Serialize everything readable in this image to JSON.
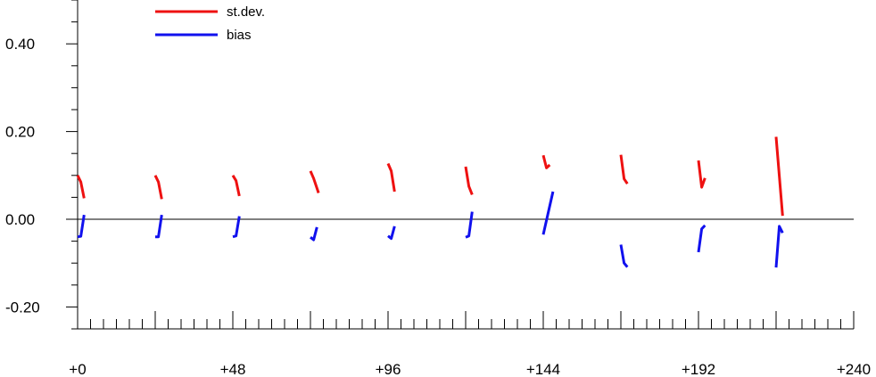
{
  "chart_data": {
    "type": "line",
    "title": "",
    "xlabel": "",
    "ylabel": "",
    "xlim": [
      0,
      240
    ],
    "ylim": [
      -0.25,
      0.5
    ],
    "x_ticks": [
      {
        "value": 0,
        "label": "+0"
      },
      {
        "value": 48,
        "label": "+48"
      },
      {
        "value": 96,
        "label": "+96"
      },
      {
        "value": 144,
        "label": "+144"
      },
      {
        "value": 192,
        "label": "+192"
      },
      {
        "value": 240,
        "label": "+240"
      }
    ],
    "y_ticks": [
      {
        "value": 0.4,
        "label": "0.40"
      },
      {
        "value": 0.2,
        "label": "0.20"
      },
      {
        "value": 0.0,
        "label": "0.00"
      },
      {
        "value": -0.2,
        "label": "-0.20"
      }
    ],
    "x_minor_step": 4,
    "y_minor_step": 0.05,
    "zero_line": true,
    "grid": false,
    "legend": {
      "position": "top-left"
    },
    "series": [
      {
        "name": "st.dev.",
        "color": "#ee1111",
        "segments": [
          [
            [
              0,
              0.1
            ],
            [
              1,
              0.085
            ],
            [
              2,
              0.048
            ]
          ],
          [
            [
              24,
              0.1
            ],
            [
              25,
              0.085
            ],
            [
              26,
              0.046
            ]
          ],
          [
            [
              48,
              0.1
            ],
            [
              49,
              0.088
            ],
            [
              50,
              0.053
            ]
          ],
          [
            [
              72,
              0.11
            ],
            [
              73,
              0.093
            ],
            [
              74.5,
              0.06
            ]
          ],
          [
            [
              96,
              0.127
            ],
            [
              97,
              0.11
            ],
            [
              98,
              0.063
            ]
          ],
          [
            [
              120,
              0.12
            ],
            [
              121,
              0.075
            ],
            [
              122,
              0.056
            ]
          ],
          [
            [
              144,
              0.146
            ],
            [
              145,
              0.117
            ],
            [
              146,
              0.124
            ]
          ],
          [
            [
              168,
              0.147
            ],
            [
              169,
              0.092
            ],
            [
              170,
              0.081
            ]
          ],
          [
            [
              192,
              0.134
            ],
            [
              193,
              0.073
            ],
            [
              194,
              0.094
            ]
          ],
          [
            [
              216,
              0.188
            ],
            [
              218,
              0.008
            ]
          ]
        ]
      },
      {
        "name": "bias",
        "color": "#1111ee",
        "segments": [
          [
            [
              0,
              -0.04
            ],
            [
              1,
              -0.039
            ],
            [
              2,
              0.01
            ]
          ],
          [
            [
              24,
              -0.04
            ],
            [
              25,
              -0.04
            ],
            [
              26,
              0.01
            ]
          ],
          [
            [
              48,
              -0.04
            ],
            [
              49,
              -0.038
            ],
            [
              50,
              0.007
            ]
          ],
          [
            [
              72,
              -0.041
            ],
            [
              73,
              -0.047
            ],
            [
              74,
              -0.018
            ]
          ],
          [
            [
              96,
              -0.038
            ],
            [
              97,
              -0.044
            ],
            [
              98,
              -0.016
            ]
          ],
          [
            [
              120,
              -0.041
            ],
            [
              121,
              -0.038
            ],
            [
              122,
              0.017
            ]
          ],
          [
            [
              144,
              -0.035
            ],
            [
              147,
              0.063
            ]
          ],
          [
            [
              168,
              -0.058
            ],
            [
              169,
              -0.1
            ],
            [
              170,
              -0.109
            ]
          ],
          [
            [
              192,
              -0.075
            ],
            [
              193,
              -0.022
            ],
            [
              194,
              -0.014
            ]
          ],
          [
            [
              216,
              -0.11
            ],
            [
              217,
              -0.016
            ],
            [
              218,
              -0.031
            ]
          ]
        ]
      }
    ]
  }
}
